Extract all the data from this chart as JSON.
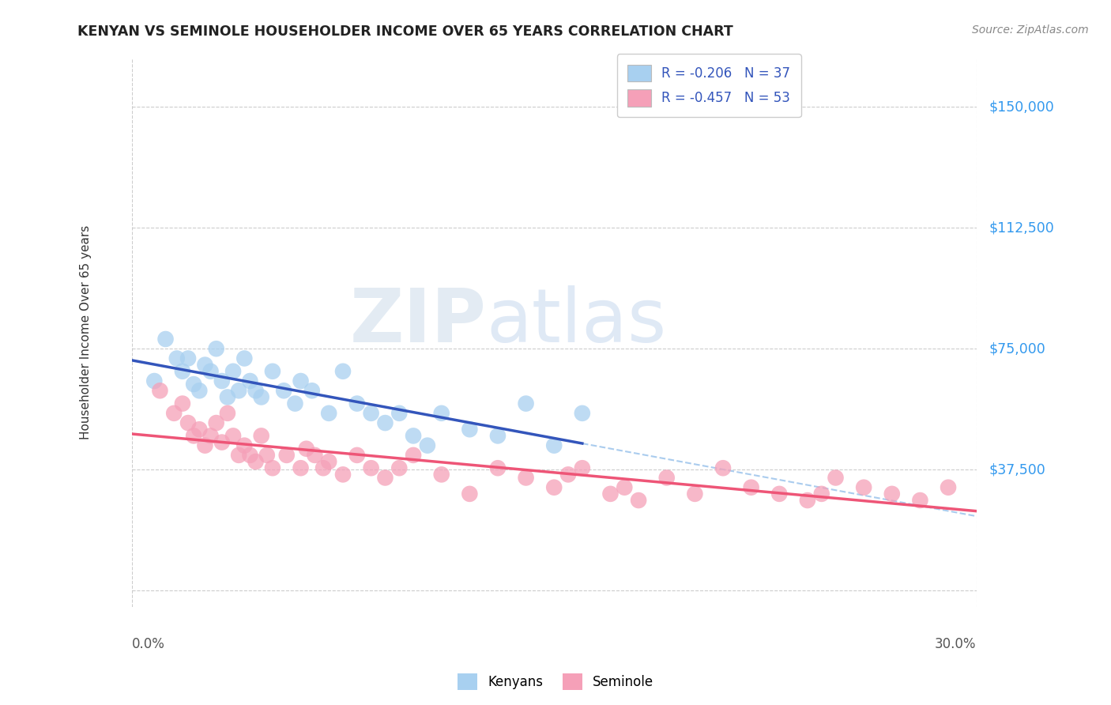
{
  "title": "KENYAN VS SEMINOLE HOUSEHOLDER INCOME OVER 65 YEARS CORRELATION CHART",
  "source": "Source: ZipAtlas.com",
  "ylabel": "Householder Income Over 65 years",
  "ytick_values": [
    0,
    37500,
    75000,
    112500,
    150000
  ],
  "ytick_right_labels": [
    "$150,000",
    "$112,500",
    "$75,000",
    "$37,500"
  ],
  "ytick_right_vals": [
    150000,
    112500,
    75000,
    37500
  ],
  "xlim": [
    0.0,
    0.3
  ],
  "ylim": [
    -5000,
    165000
  ],
  "r_kenyan": -0.206,
  "n_kenyan": 37,
  "r_seminole": -0.457,
  "n_seminole": 53,
  "kenyan_color": "#A8D0F0",
  "seminole_color": "#F5A0B8",
  "kenyan_line_color": "#3355BB",
  "seminole_line_color": "#EE5577",
  "dashed_line_color": "#AACCEE",
  "background_color": "#FFFFFF",
  "grid_color": "#CCCCCC",
  "watermark_zip": "ZIP",
  "watermark_atlas": "atlas",
  "title_fontsize": 12.5,
  "legend_fontsize": 12,
  "axis_label_fontsize": 11,
  "kenyan_points_x": [
    0.008,
    0.012,
    0.016,
    0.018,
    0.02,
    0.022,
    0.024,
    0.026,
    0.028,
    0.03,
    0.032,
    0.034,
    0.036,
    0.038,
    0.04,
    0.042,
    0.044,
    0.046,
    0.05,
    0.054,
    0.058,
    0.06,
    0.064,
    0.07,
    0.075,
    0.08,
    0.085,
    0.09,
    0.095,
    0.1,
    0.105,
    0.11,
    0.12,
    0.13,
    0.14,
    0.15,
    0.16
  ],
  "kenyan_points_y": [
    65000,
    78000,
    72000,
    68000,
    72000,
    64000,
    62000,
    70000,
    68000,
    75000,
    65000,
    60000,
    68000,
    62000,
    72000,
    65000,
    62000,
    60000,
    68000,
    62000,
    58000,
    65000,
    62000,
    55000,
    68000,
    58000,
    55000,
    52000,
    55000,
    48000,
    45000,
    55000,
    50000,
    48000,
    58000,
    45000,
    55000
  ],
  "seminole_points_x": [
    0.01,
    0.015,
    0.018,
    0.02,
    0.022,
    0.024,
    0.026,
    0.028,
    0.03,
    0.032,
    0.034,
    0.036,
    0.038,
    0.04,
    0.042,
    0.044,
    0.046,
    0.048,
    0.05,
    0.055,
    0.06,
    0.062,
    0.065,
    0.068,
    0.07,
    0.075,
    0.08,
    0.085,
    0.09,
    0.095,
    0.1,
    0.11,
    0.12,
    0.13,
    0.14,
    0.15,
    0.16,
    0.17,
    0.18,
    0.19,
    0.2,
    0.21,
    0.22,
    0.23,
    0.24,
    0.25,
    0.26,
    0.27,
    0.28,
    0.29,
    0.155,
    0.175,
    0.245
  ],
  "seminole_points_y": [
    62000,
    55000,
    58000,
    52000,
    48000,
    50000,
    45000,
    48000,
    52000,
    46000,
    55000,
    48000,
    42000,
    45000,
    42000,
    40000,
    48000,
    42000,
    38000,
    42000,
    38000,
    44000,
    42000,
    38000,
    40000,
    36000,
    42000,
    38000,
    35000,
    38000,
    42000,
    36000,
    30000,
    38000,
    35000,
    32000,
    38000,
    30000,
    28000,
    35000,
    30000,
    38000,
    32000,
    30000,
    28000,
    35000,
    32000,
    30000,
    28000,
    32000,
    36000,
    32000,
    30000
  ]
}
